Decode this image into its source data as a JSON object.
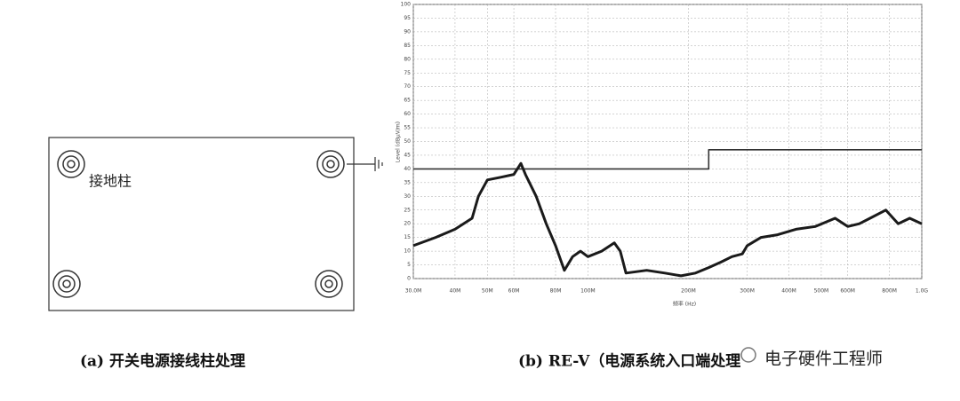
{
  "panel_a": {
    "label": "接地柱",
    "caption": "(a) 开关电源接线柱处理"
  },
  "watermark": "电子硬件工程师",
  "chart_data": {
    "type": "line",
    "caption": "(b) RE-V（电源系统入口端处理",
    "y_label": "Level (dBμV/m)",
    "x_label": "频率 (Hz)",
    "xscale": "log",
    "xlim": [
      30000000,
      1000000000
    ],
    "ylim": [
      0,
      100
    ],
    "grid": true,
    "xticks": [
      {
        "value": 30000000,
        "label": "30.0M"
      },
      {
        "value": 40000000,
        "label": "40M"
      },
      {
        "value": 50000000,
        "label": "50M"
      },
      {
        "value": 60000000,
        "label": "60M"
      },
      {
        "value": 80000000,
        "label": "80M"
      },
      {
        "value": 100000000,
        "label": "100M"
      },
      {
        "value": 200000000,
        "label": "200M"
      },
      {
        "value": 300000000,
        "label": "300M"
      },
      {
        "value": 400000000,
        "label": "400M"
      },
      {
        "value": 500000000,
        "label": "500M"
      },
      {
        "value": 600000000,
        "label": "600M"
      },
      {
        "value": 800000000,
        "label": "800M"
      },
      {
        "value": 1000000000,
        "label": "1.0G"
      }
    ],
    "yticks": [
      0,
      5,
      10,
      15,
      20,
      25,
      30,
      35,
      40,
      45,
      50,
      55,
      60,
      65,
      70,
      75,
      80,
      85,
      90,
      95,
      100
    ],
    "series": [
      {
        "color": "#333333",
        "x": [
          30000000,
          230000000,
          230000000,
          1000000000
        ],
        "values": [
          40,
          40,
          47,
          47
        ]
      },
      {
        "color": "#1a1a1a",
        "x": [
          30000000,
          35000000,
          40000000,
          45000000,
          47000000,
          50000000,
          55000000,
          60000000,
          63000000,
          65000000,
          70000000,
          75000000,
          80000000,
          85000000,
          90000000,
          95000000,
          100000000,
          110000000,
          120000000,
          125000000,
          130000000,
          150000000,
          170000000,
          190000000,
          210000000,
          230000000,
          250000000,
          270000000,
          290000000,
          300000000,
          330000000,
          370000000,
          420000000,
          480000000,
          550000000,
          600000000,
          650000000,
          700000000,
          780000000,
          850000000,
          920000000,
          1000000000
        ],
        "values": [
          12,
          15,
          18,
          22,
          30,
          36,
          37,
          38,
          42,
          38,
          30,
          20,
          12,
          3,
          8,
          10,
          8,
          10,
          13,
          10,
          2,
          3,
          2,
          1,
          2,
          4,
          6,
          8,
          9,
          12,
          15,
          16,
          18,
          19,
          22,
          19,
          20,
          22,
          25,
          20,
          22,
          20
        ]
      }
    ]
  }
}
